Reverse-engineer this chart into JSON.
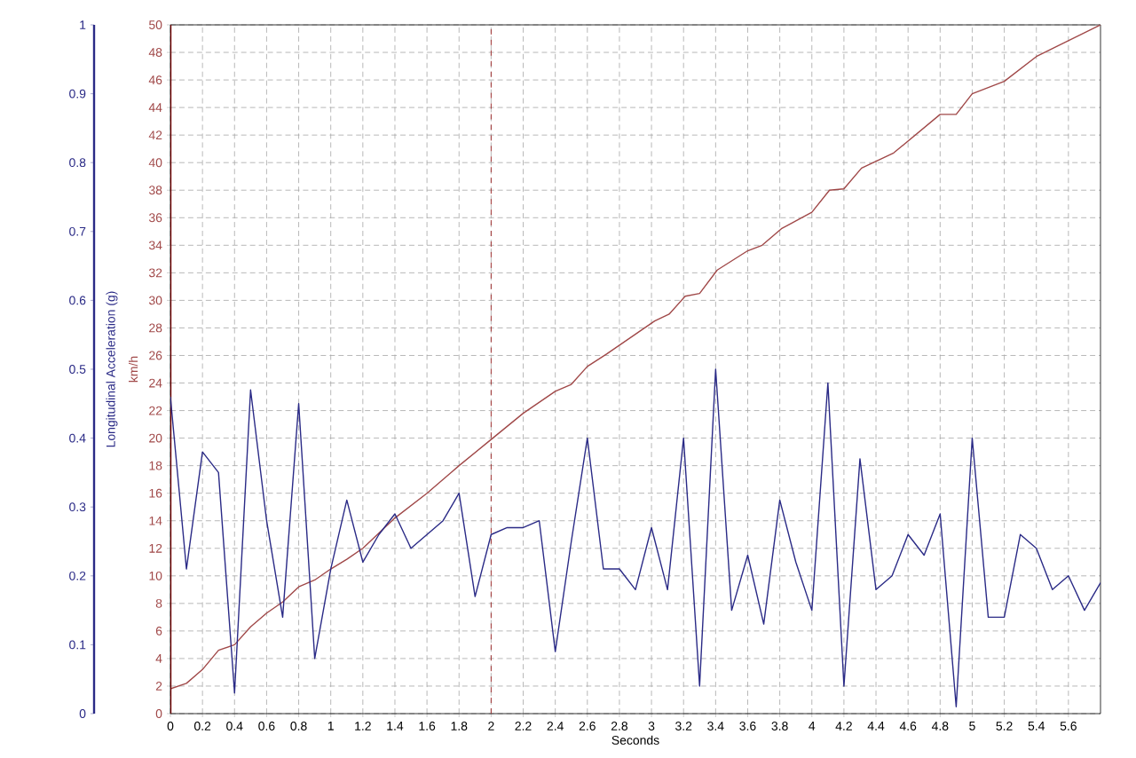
{
  "chart_data": {
    "type": "line",
    "xlabel": "Seconds",
    "ylabel": "Longitudinal Acceleration (g)",
    "y2label": "km/h",
    "xlim": [
      0,
      5.8
    ],
    "xticks": [
      0,
      0.2,
      0.4,
      0.6,
      0.8,
      1,
      1.2,
      1.4,
      1.6,
      1.8,
      2,
      2.2,
      2.4,
      2.6,
      2.8,
      3,
      3.2,
      3.4,
      3.6,
      3.8,
      4,
      4.2,
      4.4,
      4.6,
      4.8,
      5,
      5.2,
      5.4,
      5.6
    ],
    "ylim": [
      0,
      1
    ],
    "yticks": [
      0,
      0.1,
      0.2,
      0.3,
      0.4,
      0.5,
      0.6,
      0.7,
      0.8,
      0.9,
      1
    ],
    "y2lim": [
      0,
      50
    ],
    "y2ticks": [
      0,
      2,
      4,
      6,
      8,
      10,
      12,
      14,
      16,
      18,
      20,
      22,
      24,
      26,
      28,
      30,
      32,
      34,
      36,
      38,
      40,
      42,
      44,
      46,
      48,
      50
    ],
    "grid": true,
    "ref_lines": [
      {
        "axis": "x",
        "value": 2,
        "color": "#a03030",
        "line_style": "dashed"
      }
    ],
    "series": [
      {
        "color": "#2a2a86",
        "x": [
          0,
          0.1,
          0.2,
          0.3,
          0.4,
          0.5,
          0.6,
          0.7,
          0.8,
          0.9,
          1.0,
          1.1,
          1.2,
          1.3,
          1.4,
          1.5,
          1.6,
          1.7,
          1.8,
          1.9,
          2.0,
          2.1,
          2.2,
          2.3,
          2.4,
          2.5,
          2.6,
          2.7,
          2.8,
          2.9,
          3.0,
          3.1,
          3.2,
          3.3,
          3.4,
          3.5,
          3.6,
          3.7,
          3.8,
          3.9,
          4.0,
          4.1,
          4.2,
          4.3,
          4.4,
          4.5,
          4.6,
          4.7,
          4.8,
          4.9,
          5.0,
          5.1,
          5.2,
          5.3,
          5.4,
          5.5,
          5.6,
          5.7,
          5.8
        ],
        "values": [
          0.46,
          0.21,
          0.38,
          0.35,
          0.03,
          0.47,
          0.28,
          0.14,
          0.45,
          0.08,
          0.21,
          0.31,
          0.22,
          0.26,
          0.29,
          0.24,
          0.26,
          0.28,
          0.32,
          0.17,
          0.26,
          0.27,
          0.27,
          0.28,
          0.09,
          0.25,
          0.4,
          0.21,
          0.21,
          0.18,
          0.27,
          0.18,
          0.4,
          0.04,
          0.5,
          0.15,
          0.23,
          0.13,
          0.31,
          0.22,
          0.15,
          0.48,
          0.04,
          0.37,
          0.18,
          0.2,
          0.26,
          0.23,
          0.29,
          0.01,
          0.4,
          0.14,
          0.14,
          0.26,
          0.24,
          0.18,
          0.2,
          0.15,
          0.19
        ]
      },
      {
        "color": "#a04848",
        "axis": "y2",
        "x": [
          0,
          0.1,
          0.2,
          0.3,
          0.4,
          0.5,
          0.6,
          0.7,
          0.8,
          0.9,
          1.0,
          1.1,
          1.2,
          1.4,
          1.6,
          1.8,
          2.0,
          2.2,
          2.4,
          2.5,
          2.6,
          2.72,
          3.02,
          3.11,
          3.21,
          3.3,
          3.41,
          3.6,
          3.69,
          3.81,
          4.0,
          4.11,
          4.2,
          4.31,
          4.51,
          4.8,
          4.9,
          5.0,
          5.2,
          5.4,
          5.8
        ],
        "values": [
          1.8,
          2.2,
          3.2,
          4.6,
          5.0,
          6.3,
          7.3,
          8.1,
          9.2,
          9.7,
          10.5,
          11.2,
          12.0,
          14.2,
          16.0,
          18.0,
          19.9,
          21.8,
          23.4,
          23.9,
          25.2,
          26.1,
          28.5,
          29.0,
          30.3,
          30.5,
          32.2,
          33.6,
          34.0,
          35.2,
          36.4,
          38.0,
          38.1,
          39.6,
          40.7,
          43.5,
          43.5,
          45.0,
          45.9,
          47.7,
          50
        ]
      }
    ]
  }
}
